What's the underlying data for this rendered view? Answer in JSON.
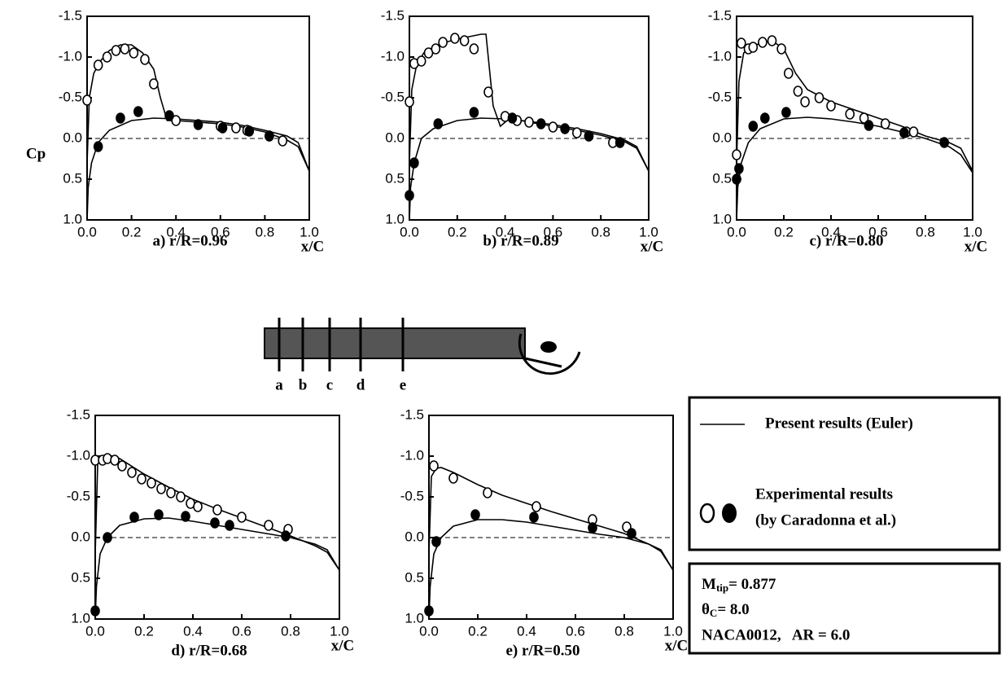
{
  "chart_data": [
    {
      "type": "line",
      "caption": "a) r/R=0.96",
      "ylabel": "Cp",
      "xlabel": "x/C",
      "hline": 0,
      "xlim": [
        0,
        1
      ],
      "ylim": [
        1.0,
        -1.5
      ],
      "xticks": [
        {
          "value": 0,
          "label": "0.0"
        },
        {
          "value": 0.2,
          "label": "0.2"
        },
        {
          "value": 0.4,
          "label": "0.4"
        },
        {
          "value": 0.6,
          "label": "0.6"
        },
        {
          "value": 0.8,
          "label": "0.8"
        },
        {
          "value": 1,
          "label": "1.0"
        }
      ],
      "yticks": [
        {
          "value": -1.5,
          "label": "-1.5"
        },
        {
          "value": -1,
          "label": "-1.0"
        },
        {
          "value": -0.5,
          "label": "-0.5"
        },
        {
          "value": 0,
          "label": "0.0"
        },
        {
          "value": 0.5,
          "label": "0.5"
        },
        {
          "value": 1,
          "label": "1.0"
        }
      ],
      "series": [
        {
          "style": "line",
          "color": "#000",
          "x": [
            0,
            0.01,
            0.03,
            0.06,
            0.1,
            0.15,
            0.2,
            0.25,
            0.3,
            0.33,
            0.36,
            0.4,
            0.5,
            0.6,
            0.7,
            0.8,
            0.9,
            0.95,
            1.0
          ],
          "values": [
            0.3,
            -0.5,
            -0.8,
            -0.95,
            -1.08,
            -1.15,
            -1.15,
            -1.05,
            -0.85,
            -0.5,
            -0.22,
            -0.22,
            -0.2,
            -0.18,
            -0.14,
            -0.08,
            0.02,
            0.1,
            0.4
          ]
        },
        {
          "style": "line",
          "color": "#000",
          "x": [
            0,
            0.005,
            0.02,
            0.05,
            0.1,
            0.2,
            0.3,
            0.4,
            0.5,
            0.6,
            0.7,
            0.8,
            0.9,
            0.95,
            1.0
          ],
          "values": [
            1.0,
            0.6,
            0.3,
            0.05,
            -0.1,
            -0.22,
            -0.25,
            -0.24,
            -0.22,
            -0.2,
            -0.16,
            -0.1,
            -0.03,
            0.05,
            0.4
          ]
        },
        {
          "style": "open",
          "color": "#000",
          "x": [
            0,
            0.05,
            0.09,
            0.13,
            0.17,
            0.21,
            0.26,
            0.3,
            0.4,
            0.6,
            0.67,
            0.72,
            0.82,
            0.88
          ],
          "values": [
            -0.47,
            -0.9,
            -1.0,
            -1.08,
            -1.1,
            -1.05,
            -0.97,
            -0.67,
            -0.22,
            -0.15,
            -0.13,
            -0.1,
            -0.03,
            0.03
          ]
        },
        {
          "style": "filled",
          "color": "#000",
          "x": [
            0.05,
            0.15,
            0.23,
            0.37,
            0.5,
            0.61,
            0.73,
            0.82
          ],
          "values": [
            0.1,
            -0.25,
            -0.33,
            -0.28,
            -0.17,
            -0.13,
            -0.09,
            -0.03
          ]
        }
      ]
    },
    {
      "type": "line",
      "caption": "b) r/R=0.89",
      "xlabel": "x/C",
      "hline": 0,
      "xlim": [
        0,
        1
      ],
      "ylim": [
        1.0,
        -1.5
      ],
      "xticks": [
        {
          "value": 0,
          "label": "0.0"
        },
        {
          "value": 0.2,
          "label": "0.2"
        },
        {
          "value": 0.4,
          "label": "0.4"
        },
        {
          "value": 0.6,
          "label": "0.6"
        },
        {
          "value": 0.8,
          "label": "0.8"
        },
        {
          "value": 1,
          "label": "1.0"
        }
      ],
      "yticks": [
        {
          "value": -1.5,
          "label": "-1.5"
        },
        {
          "value": -1,
          "label": "-1.0"
        },
        {
          "value": -0.5,
          "label": "-0.5"
        },
        {
          "value": 0,
          "label": "0.0"
        },
        {
          "value": 0.5,
          "label": "0.5"
        },
        {
          "value": 1,
          "label": "1.0"
        }
      ],
      "series": [
        {
          "style": "line",
          "color": "#000",
          "x": [
            0,
            0.01,
            0.03,
            0.06,
            0.1,
            0.15,
            0.2,
            0.25,
            0.3,
            0.32,
            0.35,
            0.38,
            0.42,
            0.5,
            0.6,
            0.7,
            0.8,
            0.9,
            0.95,
            1.0
          ],
          "values": [
            0.3,
            -0.6,
            -0.9,
            -1.05,
            -1.12,
            -1.18,
            -1.22,
            -1.25,
            -1.28,
            -1.28,
            -0.4,
            -0.15,
            -0.25,
            -0.2,
            -0.15,
            -0.1,
            -0.04,
            0.04,
            0.12,
            0.4
          ]
        },
        {
          "style": "line",
          "color": "#000",
          "x": [
            0,
            0.005,
            0.02,
            0.05,
            0.1,
            0.2,
            0.3,
            0.4,
            0.5,
            0.6,
            0.7,
            0.8,
            0.9,
            0.95,
            1.0
          ],
          "values": [
            1.0,
            0.6,
            0.3,
            0.0,
            -0.12,
            -0.22,
            -0.25,
            -0.24,
            -0.21,
            -0.17,
            -0.12,
            -0.06,
            0.02,
            0.1,
            0.4
          ]
        },
        {
          "style": "open",
          "color": "#000",
          "x": [
            0,
            0.02,
            0.05,
            0.08,
            0.11,
            0.14,
            0.19,
            0.23,
            0.27,
            0.33,
            0.4,
            0.45,
            0.5,
            0.6,
            0.7,
            0.75,
            0.85
          ],
          "values": [
            -0.45,
            -0.92,
            -0.95,
            -1.05,
            -1.1,
            -1.18,
            -1.23,
            -1.2,
            -1.1,
            -0.57,
            -0.27,
            -0.22,
            -0.2,
            -0.14,
            -0.07,
            -0.03,
            0.05
          ]
        },
        {
          "style": "filled",
          "color": "#000",
          "x": [
            0,
            0.02,
            0.12,
            0.27,
            0.43,
            0.55,
            0.65,
            0.75,
            0.88
          ],
          "values": [
            0.7,
            0.3,
            -0.18,
            -0.32,
            -0.25,
            -0.18,
            -0.12,
            -0.03,
            0.05
          ]
        }
      ]
    },
    {
      "type": "line",
      "caption": "c) r/R=0.80",
      "xlabel": "x/C",
      "hline": 0,
      "xlim": [
        0,
        1
      ],
      "ylim": [
        1.0,
        -1.5
      ],
      "xticks": [
        {
          "value": 0,
          "label": "0.0"
        },
        {
          "value": 0.2,
          "label": "0.2"
        },
        {
          "value": 0.4,
          "label": "0.4"
        },
        {
          "value": 0.6,
          "label": "0.6"
        },
        {
          "value": 0.8,
          "label": "0.8"
        },
        {
          "value": 1,
          "label": "1.0"
        }
      ],
      "yticks": [
        {
          "value": -1.5,
          "label": "-1.5"
        },
        {
          "value": -1,
          "label": "-1.0"
        },
        {
          "value": -0.5,
          "label": "-0.5"
        },
        {
          "value": 0,
          "label": "0.0"
        },
        {
          "value": 0.5,
          "label": "0.5"
        },
        {
          "value": 1,
          "label": "1.0"
        }
      ],
      "series": [
        {
          "style": "line",
          "color": "#000",
          "x": [
            0,
            0.01,
            0.03,
            0.06,
            0.1,
            0.15,
            0.2,
            0.25,
            0.3,
            0.4,
            0.5,
            0.6,
            0.7,
            0.8,
            0.9,
            0.95,
            1.0
          ],
          "values": [
            0.3,
            -0.7,
            -1.05,
            -1.12,
            -1.17,
            -1.2,
            -1.1,
            -0.8,
            -0.6,
            -0.45,
            -0.35,
            -0.25,
            -0.15,
            -0.03,
            0.05,
            0.12,
            0.4
          ]
        },
        {
          "style": "line",
          "color": "#000",
          "x": [
            0,
            0.005,
            0.02,
            0.05,
            0.1,
            0.2,
            0.3,
            0.4,
            0.5,
            0.6,
            0.7,
            0.8,
            0.9,
            0.95,
            1.0
          ],
          "values": [
            1.0,
            0.6,
            0.3,
            0.05,
            -0.12,
            -0.24,
            -0.26,
            -0.24,
            -0.2,
            -0.15,
            -0.08,
            0.0,
            0.1,
            0.2,
            0.42
          ]
        },
        {
          "style": "open",
          "color": "#000",
          "x": [
            0,
            0.02,
            0.05,
            0.07,
            0.11,
            0.15,
            0.19,
            0.22,
            0.26,
            0.29,
            0.35,
            0.4,
            0.48,
            0.54,
            0.63,
            0.72,
            0.75
          ],
          "values": [
            0.2,
            -1.17,
            -1.1,
            -1.12,
            -1.18,
            -1.2,
            -1.1,
            -0.8,
            -0.58,
            -0.45,
            -0.5,
            -0.4,
            -0.3,
            -0.25,
            -0.18,
            -0.08,
            -0.08
          ]
        },
        {
          "style": "filled",
          "color": "#000",
          "x": [
            0,
            0.01,
            0.07,
            0.12,
            0.21,
            0.56,
            0.71,
            0.88
          ],
          "values": [
            0.5,
            0.37,
            -0.15,
            -0.25,
            -0.32,
            -0.16,
            -0.07,
            0.05
          ]
        }
      ]
    },
    {
      "type": "line",
      "caption": "d) r/R=0.68",
      "xlabel": "x/C",
      "hline": 0,
      "xlim": [
        0,
        1
      ],
      "ylim": [
        1.0,
        -1.5
      ],
      "xticks": [
        {
          "value": 0,
          "label": "0.0"
        },
        {
          "value": 0.2,
          "label": "0.2"
        },
        {
          "value": 0.4,
          "label": "0.4"
        },
        {
          "value": 0.6,
          "label": "0.6"
        },
        {
          "value": 0.8,
          "label": "0.8"
        },
        {
          "value": 1,
          "label": "1.0"
        }
      ],
      "yticks": [
        {
          "value": -1.5,
          "label": "-1.5"
        },
        {
          "value": -1,
          "label": "-1.0"
        },
        {
          "value": -0.5,
          "label": "-0.5"
        },
        {
          "value": 0,
          "label": "0.0"
        },
        {
          "value": 0.5,
          "label": "0.5"
        },
        {
          "value": 1,
          "label": "1.0"
        }
      ],
      "series": [
        {
          "style": "line",
          "color": "#000",
          "x": [
            0,
            0.01,
            0.03,
            0.05,
            0.1,
            0.2,
            0.3,
            0.4,
            0.5,
            0.6,
            0.7,
            0.8,
            0.9,
            0.95,
            1.0
          ],
          "values": [
            0.2,
            -0.9,
            -1.0,
            -1.02,
            -0.97,
            -0.78,
            -0.62,
            -0.47,
            -0.35,
            -0.24,
            -0.13,
            -0.02,
            0.1,
            0.18,
            0.4
          ]
        },
        {
          "style": "line",
          "color": "#000",
          "x": [
            0,
            0.005,
            0.02,
            0.05,
            0.1,
            0.2,
            0.3,
            0.4,
            0.5,
            0.6,
            0.7,
            0.8,
            0.9,
            0.95,
            1.0
          ],
          "values": [
            1.0,
            0.6,
            0.2,
            0.0,
            -0.15,
            -0.23,
            -0.24,
            -0.2,
            -0.15,
            -0.1,
            -0.05,
            0.0,
            0.08,
            0.15,
            0.4
          ]
        },
        {
          "style": "open",
          "color": "#000",
          "x": [
            0,
            0.03,
            0.05,
            0.08,
            0.11,
            0.15,
            0.19,
            0.23,
            0.27,
            0.31,
            0.35,
            0.39,
            0.42,
            0.5,
            0.6,
            0.71,
            0.79
          ],
          "values": [
            -0.95,
            -0.95,
            -0.97,
            -0.95,
            -0.88,
            -0.8,
            -0.72,
            -0.67,
            -0.6,
            -0.55,
            -0.5,
            -0.42,
            -0.38,
            -0.34,
            -0.25,
            -0.15,
            -0.1
          ]
        },
        {
          "style": "filled",
          "color": "#000",
          "x": [
            0,
            0.05,
            0.16,
            0.26,
            0.37,
            0.49,
            0.55,
            0.78
          ],
          "values": [
            0.9,
            0.0,
            -0.25,
            -0.28,
            -0.26,
            -0.18,
            -0.15,
            -0.02
          ]
        }
      ]
    },
    {
      "type": "line",
      "caption": "e) r/R=0.50",
      "xlabel": "x/C",
      "hline": 0,
      "xlim": [
        0,
        1
      ],
      "ylim": [
        1.0,
        -1.5
      ],
      "xticks": [
        {
          "value": 0,
          "label": "0.0"
        },
        {
          "value": 0.2,
          "label": "0.2"
        },
        {
          "value": 0.4,
          "label": "0.4"
        },
        {
          "value": 0.6,
          "label": "0.6"
        },
        {
          "value": 0.8,
          "label": "0.8"
        },
        {
          "value": 1,
          "label": "1.0"
        }
      ],
      "yticks": [
        {
          "value": -1.5,
          "label": "-1.5"
        },
        {
          "value": -1,
          "label": "-1.0"
        },
        {
          "value": -0.5,
          "label": "-0.5"
        },
        {
          "value": 0,
          "label": "0.0"
        },
        {
          "value": 0.5,
          "label": "0.5"
        },
        {
          "value": 1,
          "label": "1.0"
        }
      ],
      "series": [
        {
          "style": "line",
          "color": "#000",
          "x": [
            0,
            0.01,
            0.03,
            0.05,
            0.1,
            0.2,
            0.3,
            0.4,
            0.5,
            0.6,
            0.7,
            0.8,
            0.9,
            0.95,
            1.0
          ],
          "values": [
            0.2,
            -0.75,
            -0.85,
            -0.86,
            -0.8,
            -0.65,
            -0.52,
            -0.42,
            -0.32,
            -0.23,
            -0.14,
            -0.05,
            0.08,
            0.17,
            0.4
          ]
        },
        {
          "style": "line",
          "color": "#000",
          "x": [
            0,
            0.005,
            0.02,
            0.05,
            0.1,
            0.2,
            0.3,
            0.4,
            0.5,
            0.6,
            0.7,
            0.8,
            0.9,
            0.95,
            1.0
          ],
          "values": [
            1.0,
            0.6,
            0.2,
            0.0,
            -0.14,
            -0.22,
            -0.22,
            -0.19,
            -0.14,
            -0.09,
            -0.04,
            0.0,
            0.08,
            0.15,
            0.4
          ]
        },
        {
          "style": "open",
          "color": "#000",
          "x": [
            0.02,
            0.1,
            0.24,
            0.44,
            0.67,
            0.81
          ],
          "values": [
            -0.88,
            -0.73,
            -0.55,
            -0.38,
            -0.22,
            -0.13
          ]
        },
        {
          "style": "filled",
          "color": "#000",
          "x": [
            0,
            0.03,
            0.19,
            0.43,
            0.67,
            0.83
          ],
          "values": [
            0.9,
            0.05,
            -0.28,
            -0.25,
            -0.12,
            -0.05
          ]
        }
      ]
    }
  ],
  "legend": {
    "line": "Present results (Euler)",
    "markers": [
      "Experimental results",
      "(by Caradonna et al.)"
    ]
  },
  "params": [
    [
      "M",
      "tip",
      "= 0.877"
    ],
    [
      "θ",
      "C",
      "= 8.0"
    ],
    [
      "NACA0012,   AR = 6.0"
    ]
  ],
  "diagram": {
    "labels": [
      "a",
      "b",
      "c",
      "d",
      "e"
    ]
  }
}
